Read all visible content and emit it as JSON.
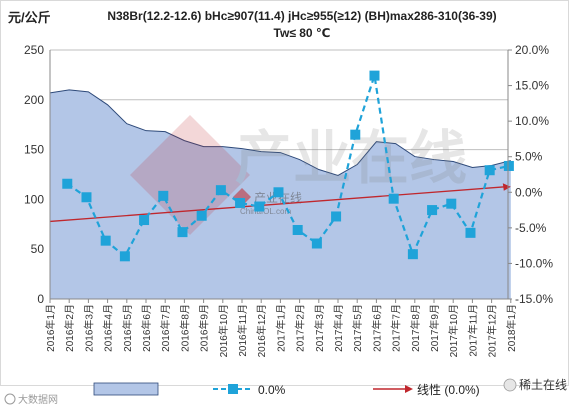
{
  "chart_data": {
    "type": "area",
    "title_line1": "N38Br(12.2-12.6)  bHc≥907(11.4)  jHc≥955(≥12)  (BH)max286-310(36-39)",
    "title_line2": "Tw≤ 80 ℃",
    "ylabel_left": "元/公斤",
    "left_ylim": [
      0,
      250
    ],
    "left_yticks": [
      "0",
      "50",
      "100",
      "150",
      "200",
      "250"
    ],
    "right_ylim": [
      -15,
      20
    ],
    "right_yticks": [
      "-15.0%",
      "-10.0%",
      "-5.0%",
      "0.0%",
      "5.0%",
      "10.0%",
      "15.0%",
      "20.0%"
    ],
    "categories": [
      "2016年1月",
      "2016年2月",
      "2016年3月",
      "2016年4月",
      "2016年5月",
      "2016年6月",
      "2016年7月",
      "2016年8月",
      "2016年9月",
      "2016年10月",
      "2016年11月",
      "2016年12月",
      "2017年1月",
      "2017年2月",
      "2017年3月",
      "2017年4月",
      "2017年5月",
      "2017年6月",
      "2017年7月",
      "2017年8月",
      "2017年9月",
      "2017年10月",
      "2017年11月",
      "2017年12月",
      "2018年1月"
    ],
    "series": [
      {
        "axis": "left",
        "type": "area",
        "color": "#b3c6e7",
        "values": [
          207,
          210,
          208,
          195,
          176,
          169,
          168,
          159,
          153,
          153,
          151,
          148,
          147,
          140,
          130,
          124,
          135,
          158,
          156,
          143,
          140,
          138,
          132,
          134,
          139
        ]
      },
      {
        "name": "0.0%",
        "axis": "right",
        "type": "line",
        "color": "#1fa3d9",
        "values": [
          1.2,
          -0.7,
          -6.8,
          -9.0,
          -3.9,
          -0.5,
          -5.6,
          -3.3,
          0.3,
          -1.5,
          -2.0,
          0.0,
          -5.3,
          -7.2,
          -3.4,
          8.1,
          16.4,
          -0.9,
          -8.7,
          -2.5,
          -1.6,
          -5.7,
          3.1,
          3.7,
          0.0
        ]
      },
      {
        "name": "线性 (0.0%)",
        "axis": "right",
        "type": "trendline",
        "color": "#c0272d",
        "start": -4.1,
        "end": 0.7
      }
    ],
    "grid": true,
    "legend": "bottom",
    "watermark_big": "产业在线",
    "watermark_small": "产业在线",
    "watermark_url": "ChinaIOL.com",
    "footer_left": "大数据网",
    "footer_right": "稀土在线"
  },
  "colors": {
    "area_fill": "#b3c6e7",
    "area_stroke": "#2e4a7a",
    "line": "#1fa3d9",
    "trend": "#c0272d",
    "grid": "#bfbfbf",
    "axis_text": "#333333"
  }
}
